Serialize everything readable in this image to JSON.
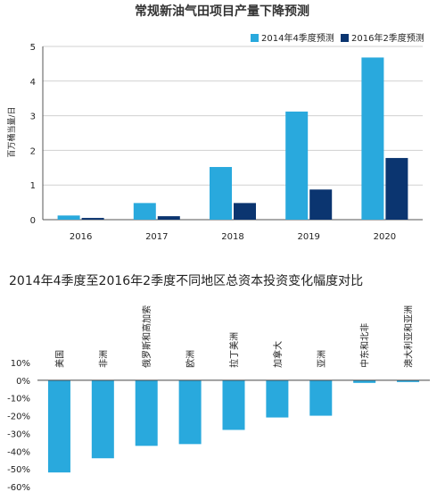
{
  "chart_data": [
    {
      "type": "bar",
      "title": "常规新油气田项目产量下降预测",
      "ylabel": "百万桶当量/日",
      "xlabel": "",
      "ylim": [
        0,
        5
      ],
      "yticks": [
        "0",
        "1",
        "2",
        "3",
        "4",
        "5"
      ],
      "categories": [
        "2016",
        "2017",
        "2018",
        "2019",
        "2020"
      ],
      "grid": true,
      "legend_position": "top-right",
      "series": [
        {
          "name": "2014年4季度预测",
          "color": "#29a9dd",
          "values": [
            0.12,
            0.48,
            1.52,
            3.12,
            4.68
          ]
        },
        {
          "name": "2016年2季度预测",
          "color": "#0b3570",
          "values": [
            0.05,
            0.1,
            0.48,
            0.87,
            1.78
          ]
        }
      ]
    },
    {
      "type": "bar",
      "title": "2014年4季度至2016年2季度不同地区总资本投资变化幅度对比",
      "xlabel": "",
      "ylabel": "",
      "ylim": [
        -60,
        10
      ],
      "yticks": [
        "10%",
        "0%",
        "-10%",
        "-20%",
        "-30%",
        "-40%",
        "-50%",
        "-60%"
      ],
      "categories": [
        "美国",
        "非洲",
        "俄罗斯和高加索",
        "欧洲",
        "拉丁美洲",
        "加拿大",
        "亚洲",
        "中东和北非",
        "澳大利亚和亚洲"
      ],
      "series": [
        {
          "color": "#29a9dd",
          "values": [
            -52,
            -44,
            -37,
            -36,
            -28,
            -21,
            -20,
            -1.5,
            -1
          ]
        }
      ]
    }
  ]
}
